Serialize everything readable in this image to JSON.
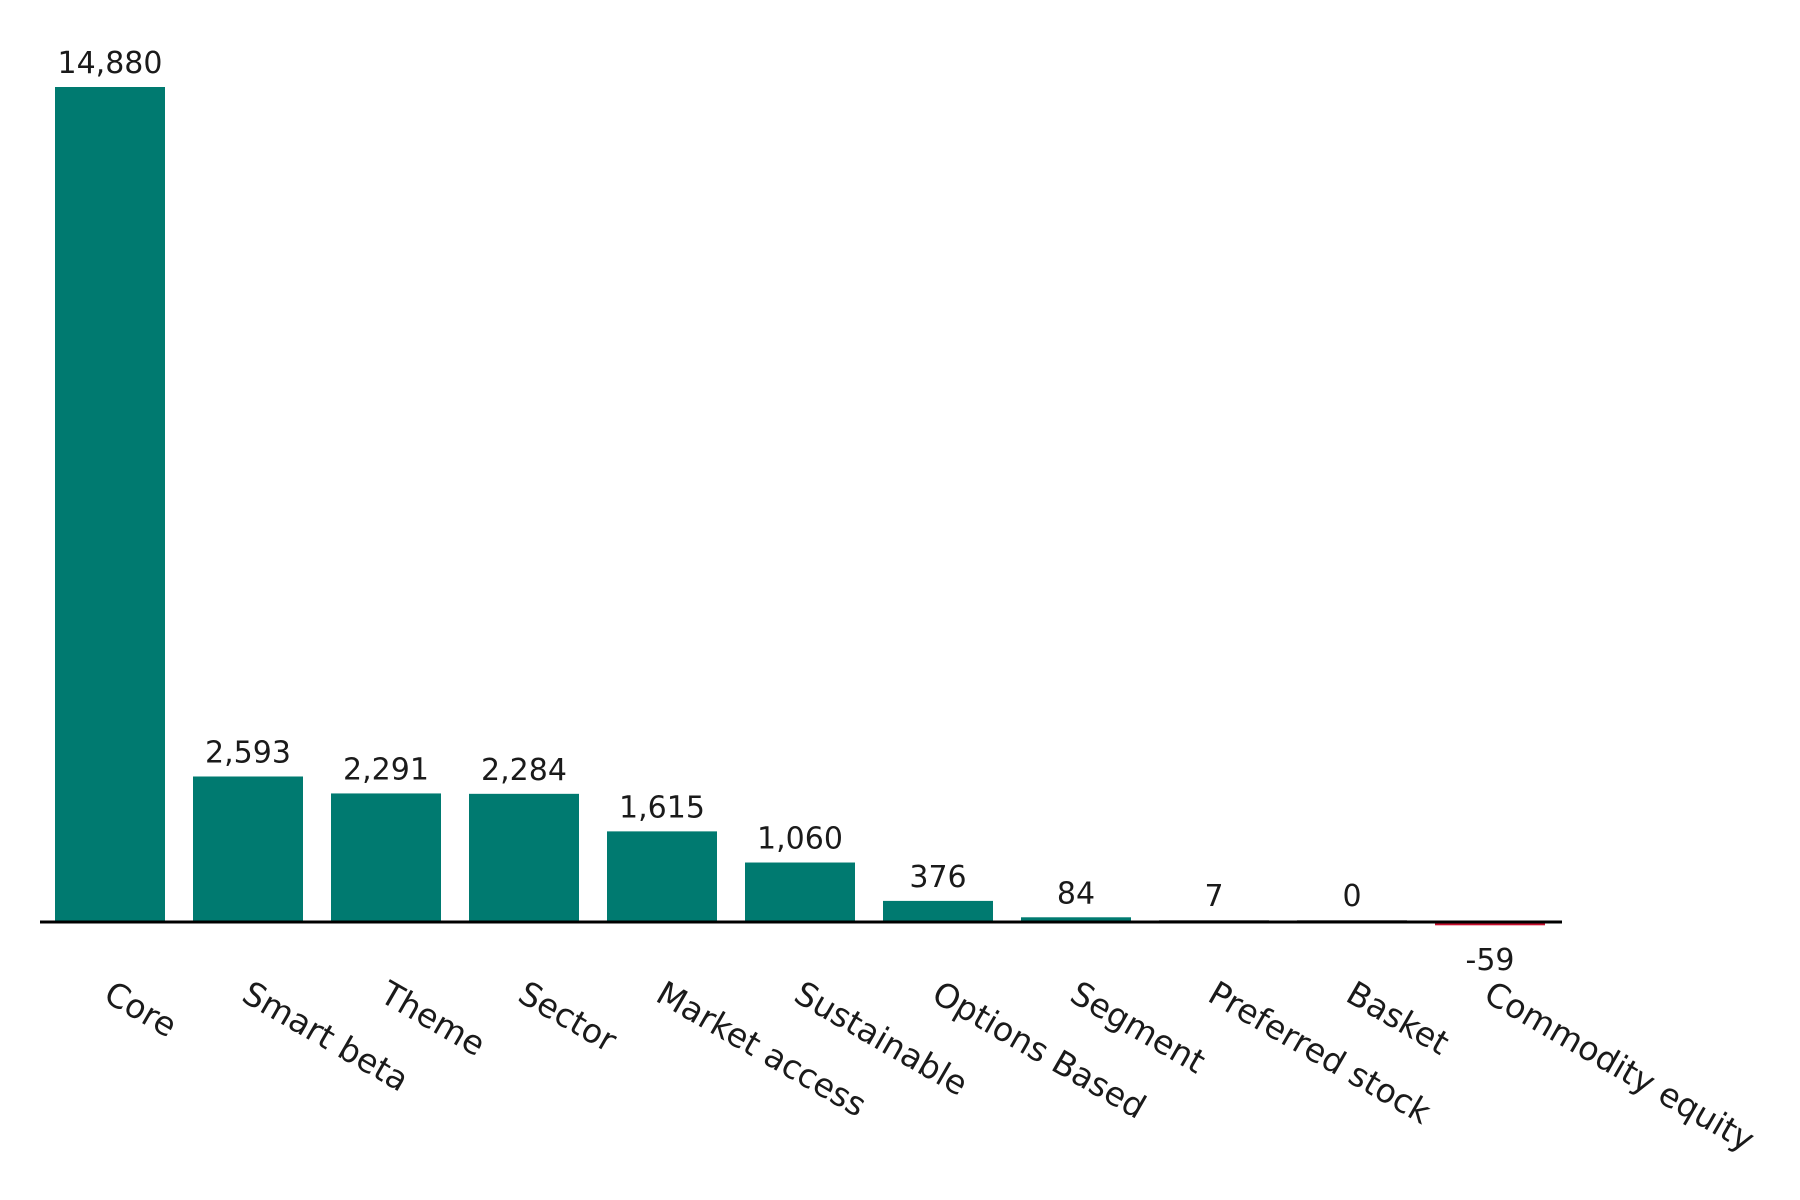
{
  "chart_data": {
    "type": "bar",
    "title": "",
    "xlabel": "",
    "ylabel": "",
    "categories": [
      "Core",
      "Smart beta",
      "Theme",
      "Sector",
      "Market access",
      "Sustainable",
      "Options Based",
      "Segment",
      "Preferred stock",
      "Basket",
      "Commodity equity"
    ],
    "values": [
      14880,
      2593,
      2291,
      2284,
      1615,
      1060,
      376,
      84,
      7,
      0,
      -59
    ],
    "value_labels": [
      "14,880",
      "2,593",
      "2,291",
      "2,284",
      "1,615",
      "1,060",
      "376",
      "84",
      "7",
      "0",
      "-59"
    ],
    "ylim": [
      -59,
      14880
    ],
    "grid": false,
    "legend": "none",
    "colors": {
      "positive": "#007a70",
      "negative": "#c8102e",
      "zero": "#aaaaaa",
      "axis": "#000000"
    }
  }
}
